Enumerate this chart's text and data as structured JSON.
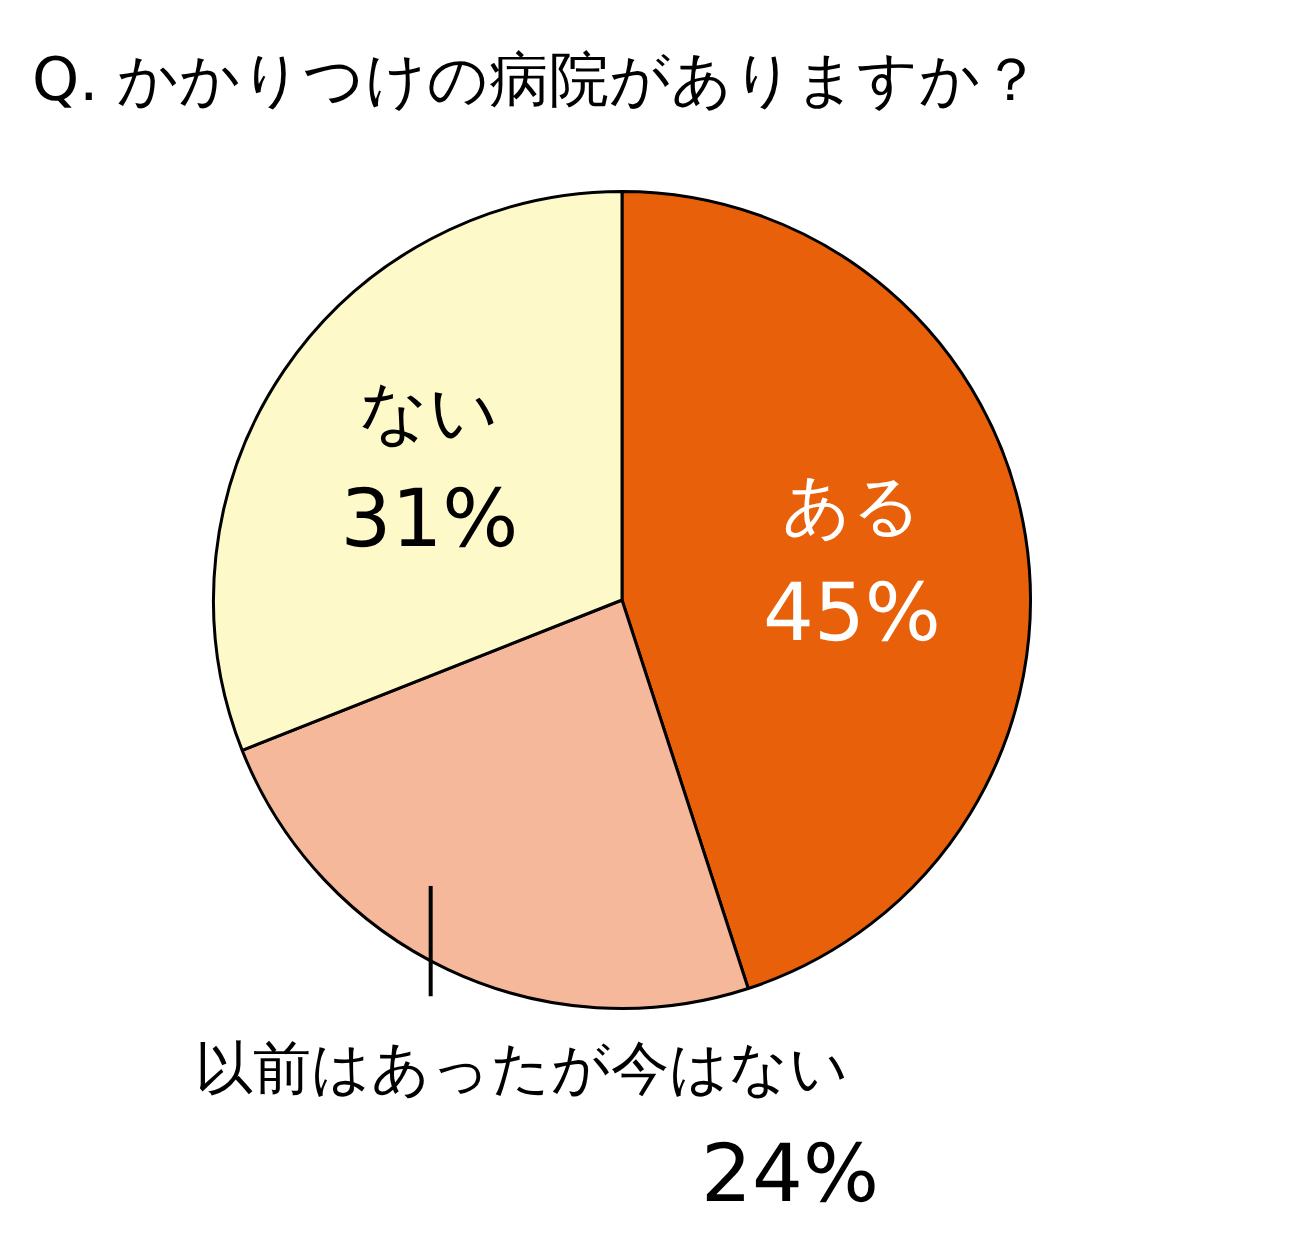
{
  "chart_data": {
    "type": "pie",
    "title": "Q. かかりつけの病院がありますか？",
    "categories": [
      "ある",
      "以前はあったが今はない",
      "ない"
    ],
    "values": [
      45,
      24,
      31
    ],
    "colors": [
      "#e8600a",
      "#f5b89a",
      "#fef9c8"
    ],
    "value_labels": [
      "45%",
      "24%",
      "31%"
    ],
    "legend": false
  }
}
